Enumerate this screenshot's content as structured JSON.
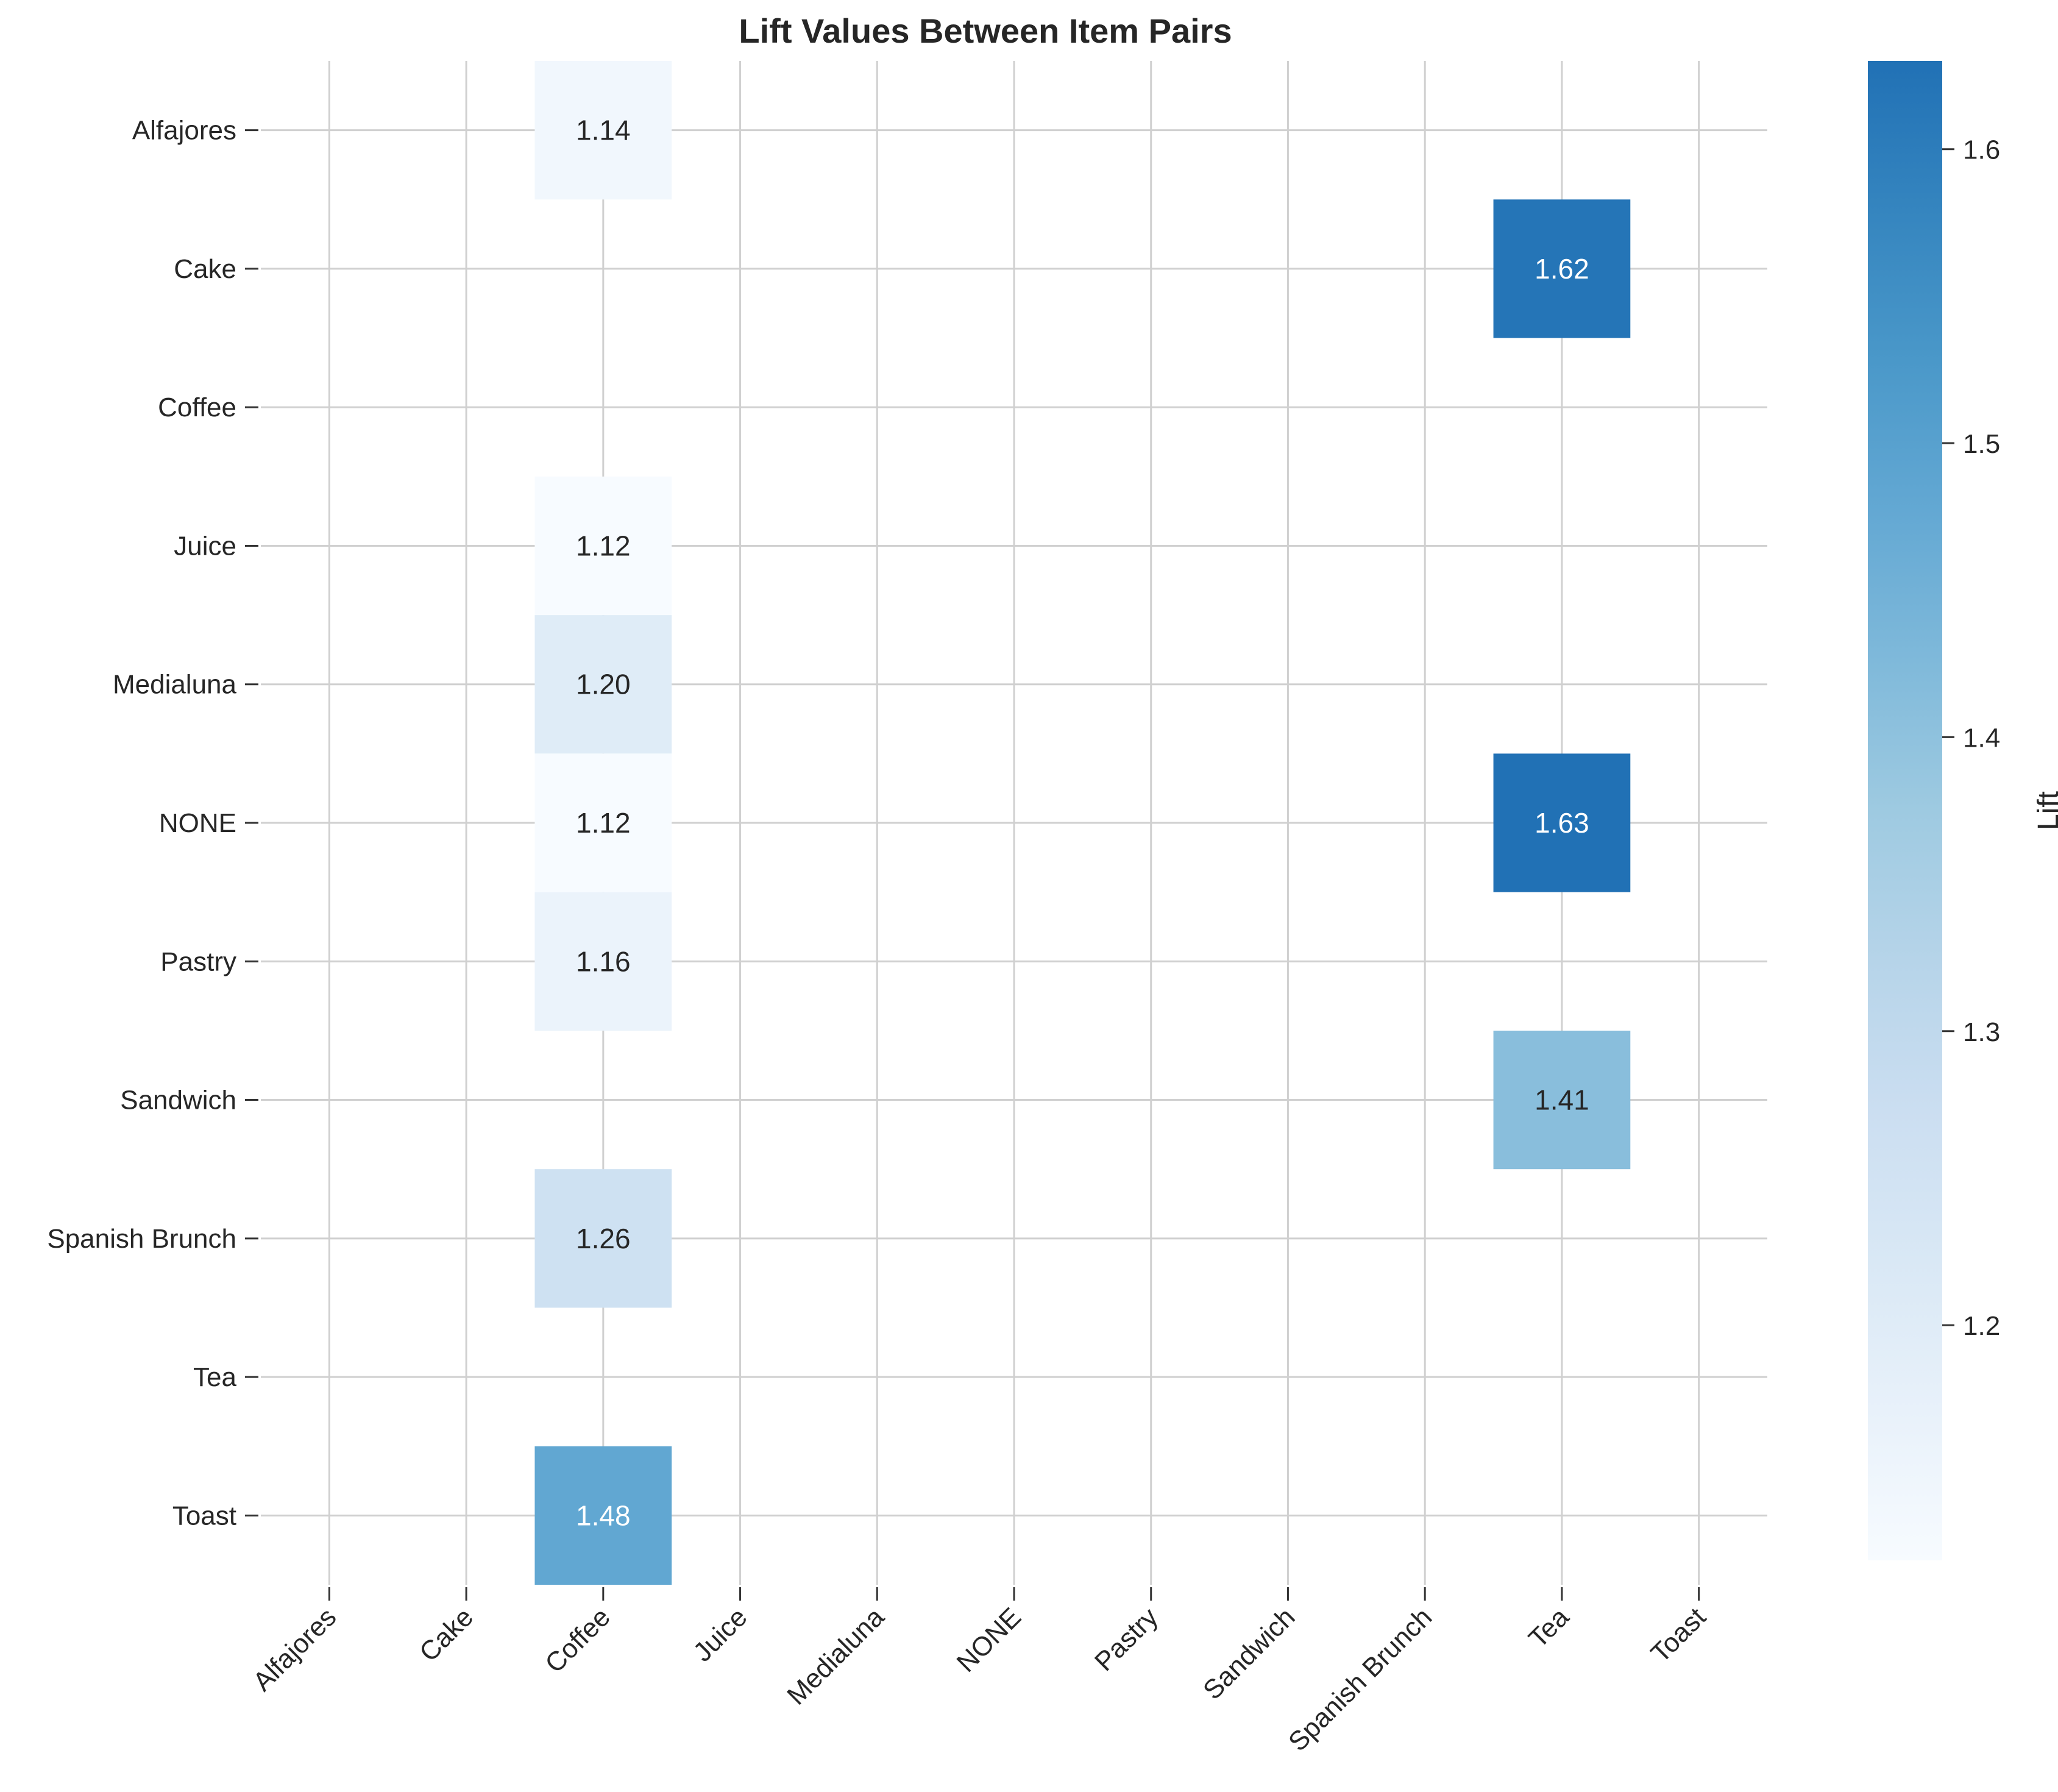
{
  "chart_data": {
    "type": "heatmap",
    "title": "Lift Values Between Item Pairs",
    "rows": [
      "Alfajores",
      "Cake",
      "Coffee",
      "Juice",
      "Medialuna",
      "NONE",
      "Pastry",
      "Sandwich",
      "Spanish Brunch",
      "Tea",
      "Toast"
    ],
    "columns": [
      "Alfajores",
      "Cake",
      "Coffee",
      "Juice",
      "Medialuna",
      "NONE",
      "Pastry",
      "Sandwich",
      "Spanish Brunch",
      "Tea",
      "Toast"
    ],
    "cells": [
      {
        "row": "Alfajores",
        "col": "Coffee",
        "value": 1.14,
        "label": "1.14"
      },
      {
        "row": "Cake",
        "col": "Tea",
        "value": 1.62,
        "label": "1.62"
      },
      {
        "row": "Juice",
        "col": "Coffee",
        "value": 1.12,
        "label": "1.12"
      },
      {
        "row": "Medialuna",
        "col": "Coffee",
        "value": 1.2,
        "label": "1.20"
      },
      {
        "row": "NONE",
        "col": "Coffee",
        "value": 1.12,
        "label": "1.12"
      },
      {
        "row": "NONE",
        "col": "Tea",
        "value": 1.63,
        "label": "1.63"
      },
      {
        "row": "Pastry",
        "col": "Coffee",
        "value": 1.16,
        "label": "1.16"
      },
      {
        "row": "Sandwich",
        "col": "Tea",
        "value": 1.41,
        "label": "1.41"
      },
      {
        "row": "Spanish Brunch",
        "col": "Coffee",
        "value": 1.26,
        "label": "1.26"
      },
      {
        "row": "Toast",
        "col": "Coffee",
        "value": 1.48,
        "label": "1.48"
      }
    ],
    "colorbar": {
      "label": "Lift",
      "vmin": 1.12,
      "vmax": 1.63,
      "ticks": [
        1.2,
        1.3,
        1.4,
        1.5,
        1.6
      ],
      "tick_labels": [
        "1.2",
        "1.3",
        "1.4",
        "1.5",
        "1.6"
      ],
      "colormap": "Blues",
      "color_low": "#f7fbff",
      "color_high": "#2171b5"
    },
    "grid": true,
    "missing_cells": "blank"
  }
}
